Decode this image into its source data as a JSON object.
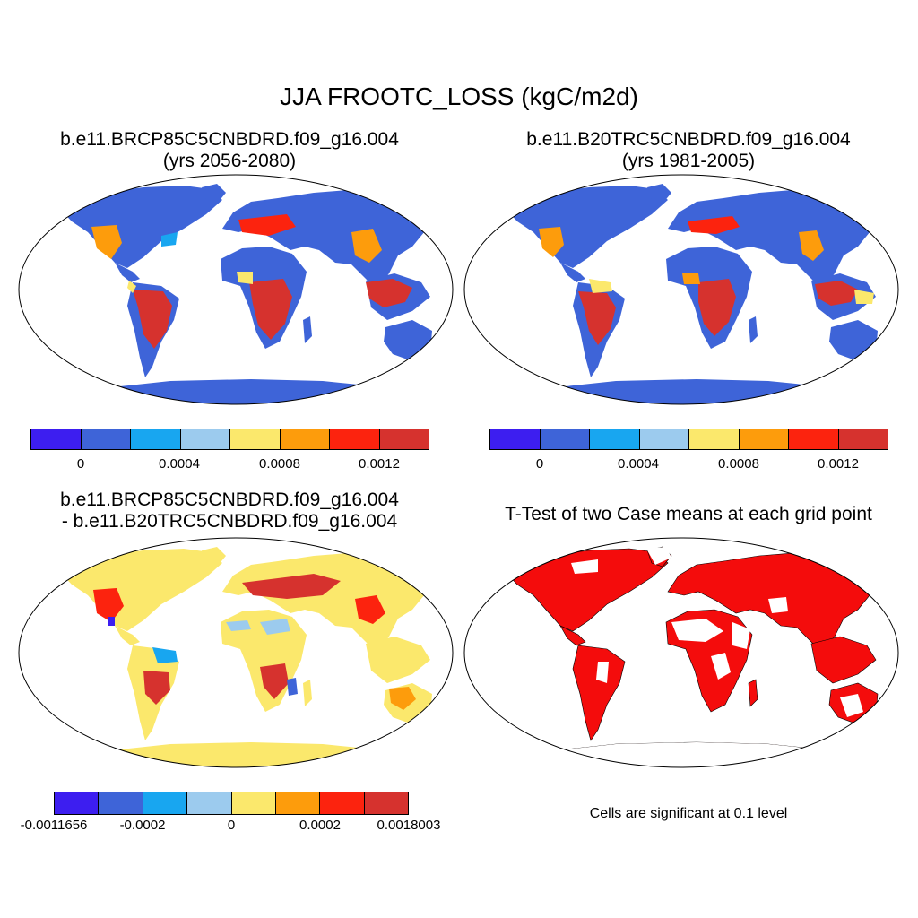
{
  "title": "JJA FROOTC_LOSS (kgC/m2d)",
  "panels": [
    {
      "title_line1": "b.e11.BRCP85C5CNBDRD.f09_g16.004",
      "title_line2": "(yrs 2056-2080)"
    },
    {
      "title_line1": "b.e11.B20TRC5CNBDRD.f09_g16.004",
      "title_line2": "(yrs 1981-2005)"
    },
    {
      "title_line1": "b.e11.BRCP85C5CNBDRD.f09_g16.004",
      "title_line2": "- b.e11.B20TRC5CNBDRD.f09_g16.004"
    },
    {
      "title_line1": "T-Test of two Case means at each grid point"
    }
  ],
  "colorbar_main": {
    "colors": [
      "#3d1ef0",
      "#3e64d8",
      "#18a6f0",
      "#9ccbee",
      "#fbe86c",
      "#fd9c0c",
      "#fc230e",
      "#d6322e"
    ],
    "tick_labels": [
      "0",
      "0.0004",
      "0.0008",
      "0.0012"
    ]
  },
  "colorbar_diff": {
    "colors": [
      "#3d1ef0",
      "#3e64d8",
      "#18a6f0",
      "#9ccbee",
      "#fbe86c",
      "#fd9c0c",
      "#fc230e",
      "#d6322e"
    ],
    "tick_labels": [
      "-0.0011656",
      "-0.0002",
      "0",
      "0.0002",
      "0.0018003"
    ]
  },
  "significance_note": "Cells are significant at 0.1 level",
  "ttest_color": "#f40c0c"
}
